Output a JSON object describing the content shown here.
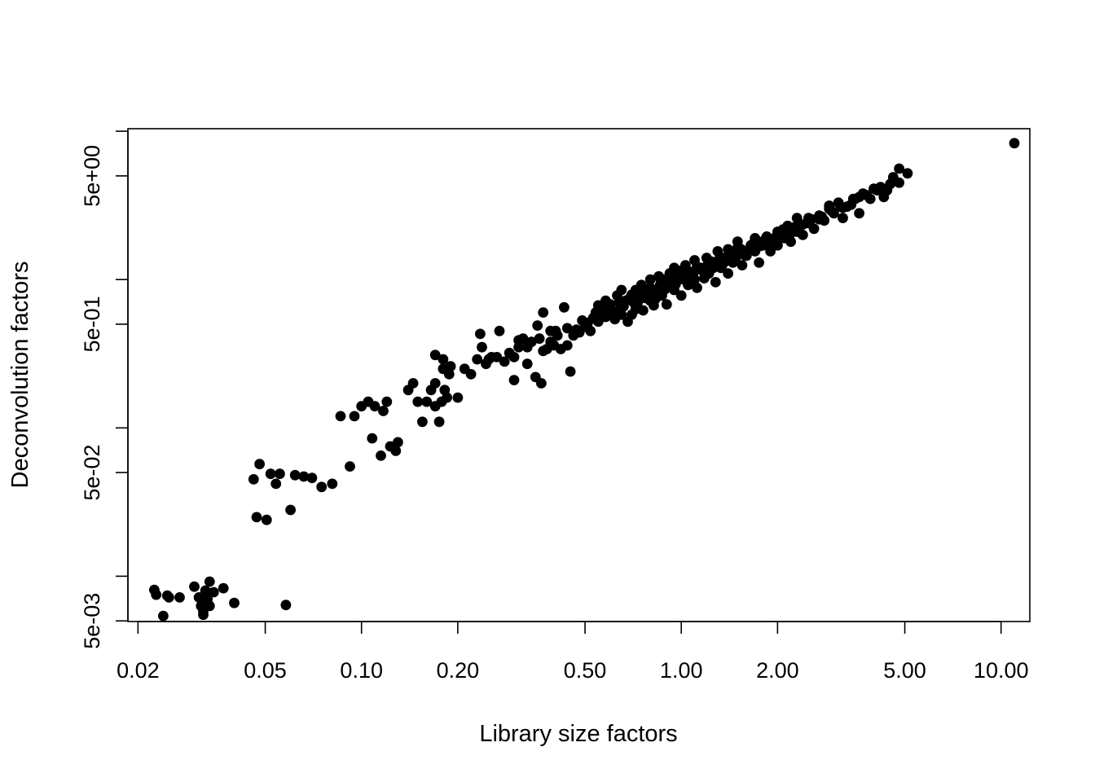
{
  "chart_data": {
    "type": "scatter",
    "title": "",
    "xlabel": "Library size factors",
    "ylabel": "Deconvolution factors",
    "x_scale": "log",
    "y_scale": "log",
    "xlim": [
      0.0186,
      12.3
    ],
    "ylim": [
      0.00495,
      10.4
    ],
    "x_ticks": [
      0.02,
      0.05,
      0.1,
      0.2,
      0.5,
      1,
      2,
      5,
      10
    ],
    "x_tick_labels": [
      "0.02",
      "0.05",
      "0.10",
      "0.20",
      "0.50",
      "1.00",
      "2.00",
      "5.00",
      "10.00"
    ],
    "y_ticks": [
      0.005,
      0.01,
      0.05,
      0.1,
      0.5,
      1,
      5,
      10
    ],
    "y_tick_labels": [
      "5e-03",
      "",
      "5e-02",
      "",
      "5e-01",
      "",
      "5e+00",
      ""
    ],
    "grid": false,
    "legend": "none",
    "marker_color": "#000000",
    "points": [
      [
        0.0225,
        0.0081
      ],
      [
        0.0228,
        0.0075
      ],
      [
        0.024,
        0.0054
      ],
      [
        0.0247,
        0.0074
      ],
      [
        0.025,
        0.0072
      ],
      [
        0.027,
        0.0072
      ],
      [
        0.03,
        0.0085
      ],
      [
        0.031,
        0.0072
      ],
      [
        0.0315,
        0.0063
      ],
      [
        0.0318,
        0.0067
      ],
      [
        0.032,
        0.0058
      ],
      [
        0.032,
        0.0055
      ],
      [
        0.0325,
        0.008
      ],
      [
        0.033,
        0.007
      ],
      [
        0.0335,
        0.0092
      ],
      [
        0.0335,
        0.0063
      ],
      [
        0.0345,
        0.0078
      ],
      [
        0.037,
        0.0083
      ],
      [
        0.04,
        0.0066
      ],
      [
        0.046,
        0.045
      ],
      [
        0.047,
        0.025
      ],
      [
        0.048,
        0.057
      ],
      [
        0.0505,
        0.024
      ],
      [
        0.052,
        0.049
      ],
      [
        0.054,
        0.042
      ],
      [
        0.0555,
        0.049
      ],
      [
        0.058,
        0.0064
      ],
      [
        0.06,
        0.028
      ],
      [
        0.062,
        0.048
      ],
      [
        0.066,
        0.047
      ],
      [
        0.07,
        0.046
      ],
      [
        0.075,
        0.04
      ],
      [
        0.081,
        0.042
      ],
      [
        0.086,
        0.12
      ],
      [
        0.092,
        0.055
      ],
      [
        0.095,
        0.12
      ],
      [
        0.1,
        0.14
      ],
      [
        0.105,
        0.15
      ],
      [
        0.108,
        0.085
      ],
      [
        0.11,
        0.14
      ],
      [
        0.115,
        0.065
      ],
      [
        0.117,
        0.13
      ],
      [
        0.12,
        0.15
      ],
      [
        0.123,
        0.075
      ],
      [
        0.128,
        0.07
      ],
      [
        0.13,
        0.08
      ],
      [
        0.14,
        0.18
      ],
      [
        0.145,
        0.2
      ],
      [
        0.15,
        0.15
      ],
      [
        0.155,
        0.11
      ],
      [
        0.16,
        0.15
      ],
      [
        0.165,
        0.18
      ],
      [
        0.17,
        0.2
      ],
      [
        0.17,
        0.14
      ],
      [
        0.175,
        0.11
      ],
      [
        0.17,
        0.31
      ],
      [
        0.178,
        0.15
      ],
      [
        0.18,
        0.25
      ],
      [
        0.18,
        0.29
      ],
      [
        0.182,
        0.18
      ],
      [
        0.185,
        0.16
      ],
      [
        0.188,
        0.23
      ],
      [
        0.19,
        0.26
      ],
      [
        0.2,
        0.16
      ],
      [
        0.21,
        0.25
      ],
      [
        0.22,
        0.23
      ],
      [
        0.23,
        0.29
      ],
      [
        0.235,
        0.43
      ],
      [
        0.238,
        0.35
      ],
      [
        0.245,
        0.27
      ],
      [
        0.25,
        0.29
      ],
      [
        0.255,
        0.3
      ],
      [
        0.265,
        0.3
      ],
      [
        0.27,
        0.45
      ],
      [
        0.28,
        0.28
      ],
      [
        0.3,
        0.21
      ],
      [
        0.3,
        0.3
      ],
      [
        0.31,
        0.35
      ],
      [
        0.32,
        0.4
      ],
      [
        0.33,
        0.27
      ],
      [
        0.34,
        0.38
      ],
      [
        0.35,
        0.22
      ],
      [
        0.355,
        0.49
      ],
      [
        0.365,
        0.2
      ],
      [
        0.37,
        0.33
      ],
      [
        0.38,
        0.34
      ],
      [
        0.4,
        0.36
      ],
      [
        0.405,
        0.45
      ],
      [
        0.42,
        0.34
      ],
      [
        0.44,
        0.36
      ],
      [
        0.45,
        0.24
      ],
      [
        0.37,
        0.6
      ],
      [
        0.39,
        0.45
      ],
      [
        0.43,
        0.65
      ],
      [
        0.46,
        0.42
      ],
      [
        0.48,
        0.44
      ],
      [
        0.5,
        0.48
      ],
      [
        0.52,
        0.45
      ],
      [
        0.53,
        0.55
      ],
      [
        0.55,
        0.52
      ],
      [
        0.55,
        0.67
      ],
      [
        0.58,
        0.56
      ],
      [
        0.58,
        0.72
      ],
      [
        0.6,
        0.61
      ],
      [
        0.6,
        0.68
      ],
      [
        0.62,
        0.54
      ],
      [
        0.63,
        0.78
      ],
      [
        0.65,
        0.65
      ],
      [
        0.65,
        0.85
      ],
      [
        0.67,
        0.72
      ],
      [
        0.68,
        0.52
      ],
      [
        0.7,
        0.79
      ],
      [
        0.7,
        0.58
      ],
      [
        0.72,
        0.85
      ],
      [
        0.73,
        0.7
      ],
      [
        0.75,
        0.92
      ],
      [
        0.76,
        0.62
      ],
      [
        0.78,
        0.8
      ],
      [
        0.8,
        0.72
      ],
      [
        0.8,
        1.0
      ],
      [
        0.82,
        0.67
      ],
      [
        0.85,
        0.88
      ],
      [
        0.85,
        1.05
      ],
      [
        0.87,
        0.78
      ],
      [
        0.9,
        0.95
      ],
      [
        0.9,
        0.68
      ],
      [
        0.92,
        1.1
      ],
      [
        0.95,
        0.85
      ],
      [
        0.95,
        1.2
      ],
      [
        0.98,
        1.0
      ],
      [
        1.0,
        0.78
      ],
      [
        1.0,
        1.15
      ],
      [
        1.03,
        1.25
      ],
      [
        1.05,
        0.92
      ],
      [
        1.08,
        1.08
      ],
      [
        1.1,
        1.35
      ],
      [
        1.12,
        0.88
      ],
      [
        1.15,
        1.2
      ],
      [
        1.18,
        1.02
      ],
      [
        1.2,
        1.4
      ],
      [
        1.22,
        1.1
      ],
      [
        1.25,
        1.3
      ],
      [
        1.28,
        0.96
      ],
      [
        1.3,
        1.55
      ],
      [
        1.33,
        1.2
      ],
      [
        1.35,
        1.4
      ],
      [
        1.4,
        1.6
      ],
      [
        1.4,
        1.1
      ],
      [
        1.45,
        1.3
      ],
      [
        1.5,
        1.5
      ],
      [
        1.5,
        1.8
      ],
      [
        1.55,
        1.25
      ],
      [
        1.6,
        1.45
      ],
      [
        1.65,
        1.7
      ],
      [
        1.7,
        1.55
      ],
      [
        1.7,
        1.9
      ],
      [
        1.75,
        1.3
      ],
      [
        1.8,
        1.7
      ],
      [
        1.85,
        1.95
      ],
      [
        1.9,
        1.55
      ],
      [
        2.0,
        2.1
      ],
      [
        2.0,
        1.7
      ],
      [
        2.1,
        1.9
      ],
      [
        2.15,
        2.3
      ],
      [
        2.2,
        1.8
      ],
      [
        2.3,
        2.1
      ],
      [
        2.3,
        2.6
      ],
      [
        2.4,
        2.0
      ],
      [
        2.5,
        2.4
      ],
      [
        2.6,
        2.2
      ],
      [
        2.7,
        2.7
      ],
      [
        2.8,
        2.5
      ],
      [
        2.9,
        3.0
      ],
      [
        3.0,
        2.8
      ],
      [
        3.1,
        3.3
      ],
      [
        3.2,
        2.6
      ],
      [
        3.3,
        3.1
      ],
      [
        3.5,
        3.5
      ],
      [
        3.6,
        2.8
      ],
      [
        3.7,
        3.8
      ],
      [
        3.9,
        3.5
      ],
      [
        4.1,
        4.0
      ],
      [
        4.3,
        3.6
      ],
      [
        4.5,
        4.4
      ],
      [
        4.6,
        4.9
      ],
      [
        4.8,
        4.5
      ],
      [
        4.8,
        5.6
      ],
      [
        5.1,
        5.2
      ],
      [
        11.0,
        8.3
      ],
      [
        0.29,
        0.32
      ],
      [
        0.31,
        0.39
      ],
      [
        0.33,
        0.35
      ],
      [
        0.36,
        0.4
      ],
      [
        0.39,
        0.38
      ],
      [
        0.41,
        0.42
      ],
      [
        0.44,
        0.47
      ],
      [
        0.47,
        0.46
      ],
      [
        0.49,
        0.53
      ],
      [
        0.51,
        0.51
      ],
      [
        0.54,
        0.6
      ],
      [
        0.56,
        0.59
      ],
      [
        0.59,
        0.64
      ],
      [
        0.61,
        0.6
      ],
      [
        0.64,
        0.7
      ],
      [
        0.66,
        0.66
      ],
      [
        0.69,
        0.75
      ],
      [
        0.71,
        0.7
      ],
      [
        0.74,
        0.77
      ],
      [
        0.77,
        0.75
      ],
      [
        0.79,
        0.86
      ],
      [
        0.83,
        0.81
      ],
      [
        0.86,
        0.93
      ],
      [
        0.89,
        0.86
      ],
      [
        0.93,
        0.99
      ],
      [
        0.96,
        0.93
      ],
      [
        0.99,
        1.06
      ],
      [
        1.02,
        1.0
      ],
      [
        1.06,
        1.13
      ],
      [
        1.09,
        1.05
      ],
      [
        1.13,
        1.18
      ],
      [
        1.17,
        1.14
      ],
      [
        1.21,
        1.26
      ],
      [
        1.26,
        1.2
      ],
      [
        1.31,
        1.36
      ],
      [
        1.36,
        1.3
      ],
      [
        1.42,
        1.48
      ],
      [
        1.48,
        1.4
      ],
      [
        1.54,
        1.6
      ],
      [
        1.61,
        1.55
      ],
      [
        1.68,
        1.75
      ],
      [
        1.76,
        1.68
      ],
      [
        1.84,
        1.9
      ],
      [
        1.93,
        1.84
      ],
      [
        2.05,
        2.0
      ],
      [
        2.15,
        2.15
      ],
      [
        2.25,
        2.25
      ],
      [
        2.4,
        2.35
      ],
      [
        2.55,
        2.55
      ],
      [
        2.75,
        2.65
      ],
      [
        2.95,
        2.9
      ],
      [
        3.15,
        3.1
      ],
      [
        3.4,
        3.2
      ],
      [
        3.6,
        3.6
      ],
      [
        3.8,
        3.7
      ],
      [
        4.0,
        4.1
      ],
      [
        4.2,
        4.2
      ],
      [
        4.4,
        4.0
      ],
      [
        4.6,
        4.6
      ],
      [
        0.65,
        0.58
      ],
      [
        0.72,
        0.63
      ],
      [
        0.8,
        0.88
      ],
      [
        0.88,
        1.0
      ],
      [
        0.96,
        1.1
      ],
      [
        1.04,
        0.98
      ],
      [
        1.12,
        1.22
      ],
      [
        1.2,
        1.2
      ],
      [
        1.3,
        1.26
      ],
      [
        1.4,
        1.36
      ],
      [
        1.5,
        1.64
      ],
      [
        1.64,
        1.6
      ],
      [
        1.8,
        1.8
      ],
      [
        1.98,
        1.95
      ],
      [
        2.2,
        2.05
      ],
      [
        0.57,
        0.63
      ],
      [
        0.63,
        0.61
      ],
      [
        0.75,
        0.82
      ],
      [
        0.83,
        0.74
      ],
      [
        0.92,
        0.9
      ],
      [
        1.01,
        1.04
      ],
      [
        1.1,
        1.0
      ],
      [
        1.24,
        1.32
      ],
      [
        1.34,
        1.24
      ],
      [
        1.46,
        1.55
      ],
      [
        1.58,
        1.46
      ],
      [
        1.72,
        1.83
      ],
      [
        1.88,
        1.76
      ],
      [
        2.08,
        2.18
      ],
      [
        2.3,
        2.22
      ],
      [
        2.5,
        2.6
      ],
      [
        2.7,
        2.55
      ],
      [
        2.9,
        3.15
      ],
      [
        3.2,
        3.05
      ],
      [
        3.45,
        3.5
      ]
    ]
  }
}
